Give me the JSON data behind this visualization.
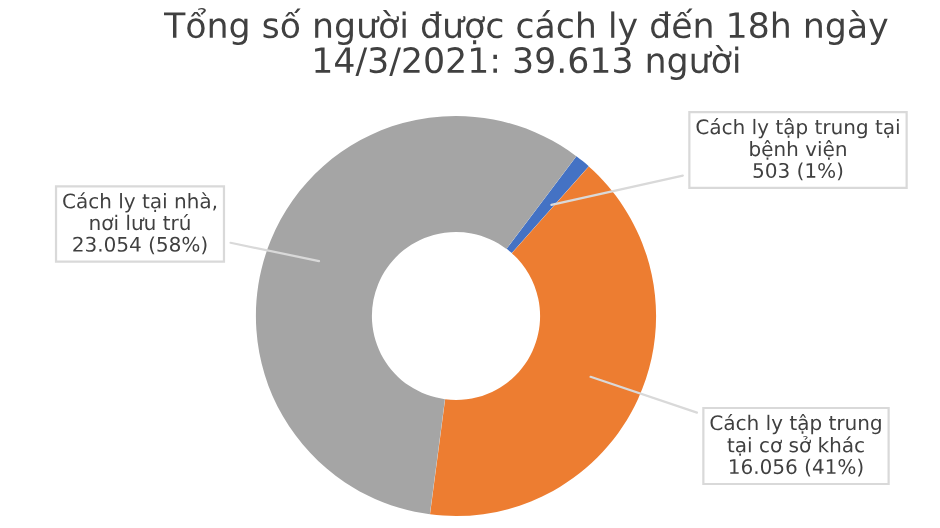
{
  "chart_data": {
    "type": "donut",
    "title": "Tổng số người được cách ly đến 18h ngày\n14/3/2021: 39.613 người",
    "categories": [
      "Cách ly tập trung tại\nbệnh viện",
      "Cách ly tập trung\ntại cơ sở khác",
      "Cách ly tại nhà,\nnơi lưu trú"
    ],
    "values": [
      503,
      16056,
      23054
    ],
    "colors": [
      "#4472c4",
      "#ed7d31",
      "#a5a5a5"
    ],
    "value_labels": [
      "503 (1%)",
      "16.056 (41%)",
      "23.054 (58%)"
    ]
  }
}
